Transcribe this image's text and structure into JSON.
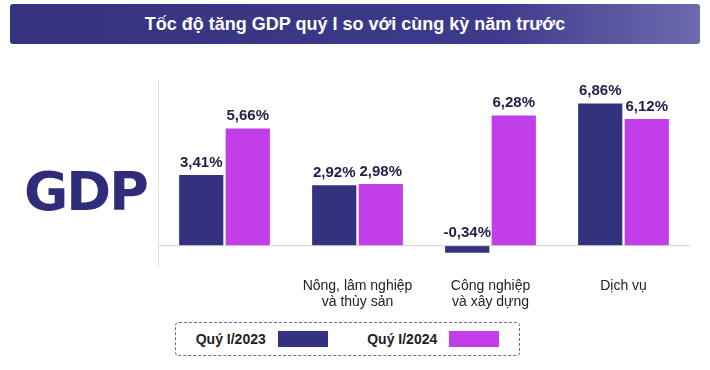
{
  "chart_data": {
    "type": "bar",
    "title": "Tốc độ tăng GDP quý I so với cùng kỳ năm trước",
    "annotations": [
      "GDP"
    ],
    "categories": [
      null,
      "Nông, lâm nghiệp\nvà thủy sản",
      "Công nghiệp\nvà xây dựng",
      "Dịch vụ"
    ],
    "series": [
      {
        "name": "Quý I/2023",
        "color": "#34327e",
        "values": [
          3.41,
          2.92,
          -0.34,
          6.86
        ],
        "value_labels": [
          "3,41%",
          "2,92%",
          "-0,34%",
          "6,86%"
        ]
      },
      {
        "name": "Quý I/2024",
        "color": "#c23ee8",
        "values": [
          5.66,
          2.98,
          6.28,
          6.12
        ],
        "value_labels": [
          "5,66%",
          "2,98%",
          "6,28%",
          "6,12%"
        ]
      }
    ],
    "ylim": [
      -1,
      8
    ],
    "grid": false,
    "legend": "bottom",
    "data_labels": true,
    "tick_labels": "x"
  }
}
